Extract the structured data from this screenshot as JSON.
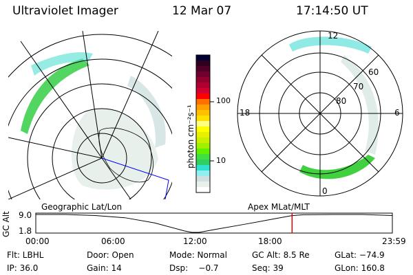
{
  "header": {
    "instrument": "Ultraviolet Imager",
    "date": "12 Mar 07",
    "time": "17:14:50 UT"
  },
  "colorbar": {
    "label": "photon cm⁻²s⁻¹",
    "ticks": [
      "100",
      "10"
    ],
    "colors": [
      "#000030",
      "#300020",
      "#500028",
      "#700030",
      "#900030",
      "#b00030",
      "#d00030",
      "#ff0000",
      "#ff7000",
      "#ffa000",
      "#ffc000",
      "#ffe000",
      "#ffff80",
      "#ffff00",
      "#e8f000",
      "#c8f000",
      "#a0f000",
      "#60f000",
      "#40e040",
      "#30d060",
      "#30e0d0",
      "#90f0f0",
      "#d0e0e0",
      "#e8f0ec",
      "#ffffff"
    ]
  },
  "geo_panel": {
    "label": "Geographic Lat/Lon"
  },
  "mag_panel": {
    "label": "Apex MLat/MLT",
    "mlt_labels": [
      "12",
      "18",
      "6",
      "0"
    ],
    "lat_labels": [
      "60",
      "70",
      "80"
    ]
  },
  "chart_data": {
    "type": "line",
    "title": "",
    "ylabel": "GC Alt",
    "yticks": [
      "9.0",
      "1.8"
    ],
    "ylim": [
      1.8,
      9.0
    ],
    "xticks": [
      "00:00",
      "06:00",
      "12:00",
      "18:00",
      "23:59"
    ],
    "xlim_hours": [
      0,
      24
    ],
    "x": [
      0,
      2,
      4,
      6,
      8,
      10,
      10.5,
      11,
      12,
      14,
      16,
      17.2,
      18,
      20,
      22,
      24
    ],
    "y": [
      9.0,
      9.0,
      8.6,
      7.7,
      5.6,
      2.4,
      1.8,
      1.8,
      2.9,
      5.0,
      7.2,
      8.5,
      8.9,
      9.0,
      9.0,
      8.6
    ],
    "current_time_hours": 17.25,
    "marker_color": "#e00000"
  },
  "status": {
    "flt": "Flt: LBHL",
    "ip": "IP: 36.0",
    "door": "Door: Open",
    "gain": "Gain: 14",
    "mode": "Mode: Normal",
    "dsp": "Dsp:    −0.7",
    "gcalt": "GC Alt: 8.5 Re",
    "seq": "Seq: 39",
    "glat": "GLat: −74.9",
    "glon": "GLon: 160.8"
  }
}
